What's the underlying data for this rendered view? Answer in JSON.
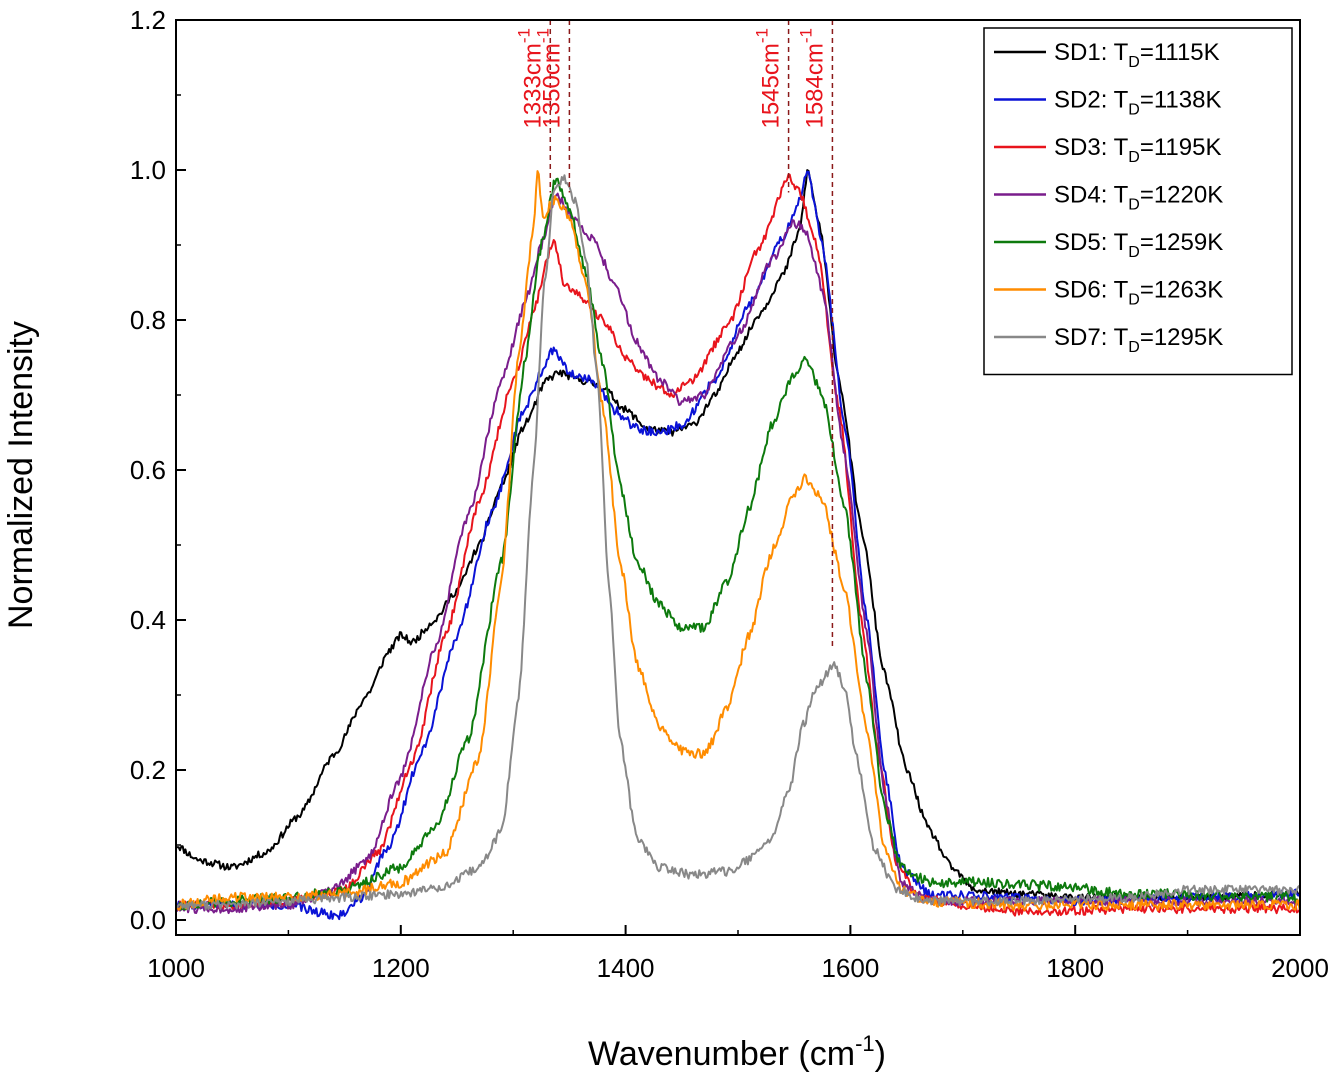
{
  "chart_data": {
    "type": "line",
    "title": "",
    "xlabel": "Wavenumber (cm",
    "xlabel_sup": "-1",
    "xlabel_close": ")",
    "ylabel": "Normalized Intensity",
    "xlim": [
      1000,
      2000
    ],
    "ylim": [
      -0.02,
      1.2
    ],
    "x_ticks": [
      1000,
      1200,
      1400,
      1600,
      1800,
      2000
    ],
    "x_tick_labels": [
      "1000",
      "1200",
      "1400",
      "1600",
      "1800",
      "2000"
    ],
    "x_minor_ticks": [
      1100,
      1300,
      1500,
      1700,
      1900
    ],
    "y_ticks": [
      0.0,
      0.2,
      0.4,
      0.6,
      0.8,
      1.0,
      1.2
    ],
    "y_tick_labels": [
      "0.0",
      "0.2",
      "0.4",
      "0.6",
      "0.8",
      "1.0",
      "1.2"
    ],
    "y_minor_ticks": [
      0.1,
      0.3,
      0.5,
      0.7,
      0.9,
      1.1
    ],
    "grid": false,
    "legend_position": "top-right",
    "annotations": [
      {
        "x": 1333,
        "label": "1333cm",
        "sup": "-1",
        "color": "#e8141c"
      },
      {
        "x": 1350,
        "label": "1350cm",
        "sup": "-1",
        "color": "#e8141c"
      },
      {
        "x": 1545,
        "label": "1545cm",
        "sup": "-1",
        "color": "#e8141c"
      },
      {
        "x": 1584,
        "label": "1584cm",
        "sup": "-1",
        "color": "#e8141c"
      }
    ],
    "annotation_line_color": "#8b1a1a",
    "series": [
      {
        "name": "SD1",
        "legend_prefix": "SD1: T",
        "legend_sub": "D",
        "legend_suffix": "=1115K",
        "color": "#000000",
        "noise": 0.005,
        "seed": 11,
        "points": [
          [
            1000,
            0.1
          ],
          [
            1020,
            0.08
          ],
          [
            1050,
            0.07
          ],
          [
            1080,
            0.09
          ],
          [
            1110,
            0.14
          ],
          [
            1140,
            0.22
          ],
          [
            1170,
            0.3
          ],
          [
            1190,
            0.36
          ],
          [
            1200,
            0.38
          ],
          [
            1210,
            0.37
          ],
          [
            1230,
            0.4
          ],
          [
            1250,
            0.44
          ],
          [
            1270,
            0.5
          ],
          [
            1290,
            0.58
          ],
          [
            1310,
            0.66
          ],
          [
            1330,
            0.72
          ],
          [
            1340,
            0.73
          ],
          [
            1360,
            0.72
          ],
          [
            1380,
            0.71
          ],
          [
            1400,
            0.68
          ],
          [
            1420,
            0.655
          ],
          [
            1440,
            0.65
          ],
          [
            1460,
            0.66
          ],
          [
            1480,
            0.7
          ],
          [
            1500,
            0.76
          ],
          [
            1520,
            0.81
          ],
          [
            1540,
            0.86
          ],
          [
            1555,
            0.92
          ],
          [
            1562,
            1.0
          ],
          [
            1572,
            0.93
          ],
          [
            1590,
            0.72
          ],
          [
            1610,
            0.52
          ],
          [
            1630,
            0.33
          ],
          [
            1650,
            0.2
          ],
          [
            1670,
            0.12
          ],
          [
            1690,
            0.07
          ],
          [
            1710,
            0.04
          ],
          [
            1750,
            0.035
          ],
          [
            1800,
            0.03
          ],
          [
            1900,
            0.03
          ],
          [
            2000,
            0.035
          ]
        ]
      },
      {
        "name": "SD2",
        "legend_prefix": "SD2: T",
        "legend_sub": "D",
        "legend_suffix": "=1138K",
        "color": "#0a12d6",
        "noise": 0.006,
        "seed": 22,
        "points": [
          [
            1000,
            0.02
          ],
          [
            1050,
            0.02
          ],
          [
            1100,
            0.02
          ],
          [
            1130,
            0.01
          ],
          [
            1145,
            0.005
          ],
          [
            1165,
            0.03
          ],
          [
            1190,
            0.1
          ],
          [
            1220,
            0.23
          ],
          [
            1250,
            0.38
          ],
          [
            1280,
            0.54
          ],
          [
            1310,
            0.68
          ],
          [
            1325,
            0.73
          ],
          [
            1335,
            0.76
          ],
          [
            1350,
            0.73
          ],
          [
            1370,
            0.72
          ],
          [
            1390,
            0.68
          ],
          [
            1410,
            0.655
          ],
          [
            1430,
            0.65
          ],
          [
            1450,
            0.66
          ],
          [
            1480,
            0.72
          ],
          [
            1510,
            0.82
          ],
          [
            1540,
            0.91
          ],
          [
            1555,
            0.96
          ],
          [
            1562,
            1.0
          ],
          [
            1575,
            0.9
          ],
          [
            1595,
            0.66
          ],
          [
            1615,
            0.4
          ],
          [
            1630,
            0.2
          ],
          [
            1645,
            0.07
          ],
          [
            1670,
            0.035
          ],
          [
            1800,
            0.025
          ],
          [
            1900,
            0.03
          ],
          [
            2000,
            0.035
          ]
        ]
      },
      {
        "name": "SD3",
        "legend_prefix": "SD3: T",
        "legend_sub": "D",
        "legend_suffix": "=1195K",
        "color": "#e8141c",
        "noise": 0.006,
        "seed": 33,
        "points": [
          [
            1000,
            0.02
          ],
          [
            1050,
            0.02
          ],
          [
            1100,
            0.025
          ],
          [
            1150,
            0.04
          ],
          [
            1180,
            0.09
          ],
          [
            1210,
            0.21
          ],
          [
            1240,
            0.38
          ],
          [
            1270,
            0.56
          ],
          [
            1300,
            0.72
          ],
          [
            1320,
            0.82
          ],
          [
            1330,
            0.88
          ],
          [
            1336,
            0.91
          ],
          [
            1345,
            0.85
          ],
          [
            1360,
            0.83
          ],
          [
            1380,
            0.8
          ],
          [
            1400,
            0.75
          ],
          [
            1420,
            0.72
          ],
          [
            1440,
            0.7
          ],
          [
            1460,
            0.72
          ],
          [
            1490,
            0.79
          ],
          [
            1520,
            0.9
          ],
          [
            1545,
            0.99
          ],
          [
            1555,
            0.97
          ],
          [
            1570,
            0.9
          ],
          [
            1590,
            0.68
          ],
          [
            1610,
            0.4
          ],
          [
            1625,
            0.22
          ],
          [
            1640,
            0.08
          ],
          [
            1660,
            0.03
          ],
          [
            1700,
            0.02
          ],
          [
            1750,
            0.01
          ],
          [
            1850,
            0.015
          ],
          [
            2000,
            0.015
          ]
        ]
      },
      {
        "name": "SD4",
        "legend_prefix": "SD4: T",
        "legend_sub": "D",
        "legend_suffix": "=1220K",
        "color": "#7a1d8c",
        "noise": 0.006,
        "seed": 44,
        "points": [
          [
            1000,
            0.015
          ],
          [
            1050,
            0.015
          ],
          [
            1100,
            0.02
          ],
          [
            1140,
            0.04
          ],
          [
            1170,
            0.08
          ],
          [
            1200,
            0.19
          ],
          [
            1230,
            0.36
          ],
          [
            1260,
            0.54
          ],
          [
            1290,
            0.72
          ],
          [
            1310,
            0.82
          ],
          [
            1325,
            0.9
          ],
          [
            1338,
            0.97
          ],
          [
            1350,
            0.94
          ],
          [
            1370,
            0.91
          ],
          [
            1390,
            0.85
          ],
          [
            1410,
            0.77
          ],
          [
            1430,
            0.72
          ],
          [
            1450,
            0.69
          ],
          [
            1470,
            0.7
          ],
          [
            1500,
            0.78
          ],
          [
            1530,
            0.88
          ],
          [
            1550,
            0.93
          ],
          [
            1560,
            0.92
          ],
          [
            1575,
            0.84
          ],
          [
            1595,
            0.62
          ],
          [
            1615,
            0.38
          ],
          [
            1630,
            0.17
          ],
          [
            1645,
            0.05
          ],
          [
            1670,
            0.025
          ],
          [
            2000,
            0.025
          ]
        ]
      },
      {
        "name": "SD5",
        "legend_prefix": "SD5: T",
        "legend_sub": "D",
        "legend_suffix": "=1259K",
        "color": "#0d7a0d",
        "noise": 0.007,
        "seed": 55,
        "points": [
          [
            1000,
            0.02
          ],
          [
            1050,
            0.025
          ],
          [
            1100,
            0.03
          ],
          [
            1150,
            0.04
          ],
          [
            1200,
            0.07
          ],
          [
            1230,
            0.12
          ],
          [
            1260,
            0.24
          ],
          [
            1290,
            0.48
          ],
          [
            1310,
            0.74
          ],
          [
            1325,
            0.9
          ],
          [
            1338,
            0.99
          ],
          [
            1350,
            0.95
          ],
          [
            1365,
            0.86
          ],
          [
            1380,
            0.74
          ],
          [
            1395,
            0.58
          ],
          [
            1410,
            0.48
          ],
          [
            1430,
            0.42
          ],
          [
            1450,
            0.39
          ],
          [
            1470,
            0.39
          ],
          [
            1490,
            0.45
          ],
          [
            1510,
            0.55
          ],
          [
            1530,
            0.66
          ],
          [
            1550,
            0.73
          ],
          [
            1560,
            0.75
          ],
          [
            1575,
            0.7
          ],
          [
            1595,
            0.55
          ],
          [
            1615,
            0.32
          ],
          [
            1630,
            0.15
          ],
          [
            1645,
            0.07
          ],
          [
            1670,
            0.05
          ],
          [
            1720,
            0.05
          ],
          [
            1780,
            0.045
          ],
          [
            1850,
            0.035
          ],
          [
            2000,
            0.03
          ]
        ]
      },
      {
        "name": "SD6",
        "legend_prefix": "SD6: T",
        "legend_sub": "D",
        "legend_suffix": "=1263K",
        "color": "#ff8c00",
        "noise": 0.007,
        "seed": 66,
        "points": [
          [
            1000,
            0.02
          ],
          [
            1050,
            0.03
          ],
          [
            1100,
            0.03
          ],
          [
            1150,
            0.035
          ],
          [
            1200,
            0.05
          ],
          [
            1240,
            0.09
          ],
          [
            1270,
            0.22
          ],
          [
            1290,
            0.46
          ],
          [
            1305,
            0.76
          ],
          [
            1318,
            0.92
          ],
          [
            1322,
            1.0
          ],
          [
            1326,
            0.94
          ],
          [
            1338,
            0.96
          ],
          [
            1350,
            0.94
          ],
          [
            1365,
            0.85
          ],
          [
            1380,
            0.68
          ],
          [
            1395,
            0.48
          ],
          [
            1410,
            0.34
          ],
          [
            1430,
            0.26
          ],
          [
            1450,
            0.225
          ],
          [
            1470,
            0.22
          ],
          [
            1490,
            0.28
          ],
          [
            1510,
            0.38
          ],
          [
            1530,
            0.49
          ],
          [
            1550,
            0.57
          ],
          [
            1560,
            0.59
          ],
          [
            1575,
            0.56
          ],
          [
            1595,
            0.44
          ],
          [
            1615,
            0.25
          ],
          [
            1630,
            0.1
          ],
          [
            1645,
            0.04
          ],
          [
            1670,
            0.025
          ],
          [
            1750,
            0.02
          ],
          [
            1850,
            0.02
          ],
          [
            2000,
            0.02
          ]
        ]
      },
      {
        "name": "SD7",
        "legend_prefix": "SD7: T",
        "legend_sub": "D",
        "legend_suffix": "=1295K",
        "color": "#888888",
        "noise": 0.006,
        "seed": 77,
        "points": [
          [
            1000,
            0.02
          ],
          [
            1050,
            0.02
          ],
          [
            1100,
            0.025
          ],
          [
            1150,
            0.03
          ],
          [
            1200,
            0.035
          ],
          [
            1240,
            0.045
          ],
          [
            1270,
            0.07
          ],
          [
            1290,
            0.12
          ],
          [
            1305,
            0.3
          ],
          [
            1318,
            0.6
          ],
          [
            1328,
            0.85
          ],
          [
            1336,
            0.97
          ],
          [
            1345,
            0.99
          ],
          [
            1355,
            0.96
          ],
          [
            1365,
            0.88
          ],
          [
            1375,
            0.72
          ],
          [
            1385,
            0.45
          ],
          [
            1395,
            0.24
          ],
          [
            1410,
            0.11
          ],
          [
            1430,
            0.07
          ],
          [
            1460,
            0.06
          ],
          [
            1490,
            0.065
          ],
          [
            1510,
            0.08
          ],
          [
            1530,
            0.11
          ],
          [
            1545,
            0.17
          ],
          [
            1558,
            0.26
          ],
          [
            1570,
            0.31
          ],
          [
            1585,
            0.34
          ],
          [
            1595,
            0.31
          ],
          [
            1605,
            0.22
          ],
          [
            1620,
            0.1
          ],
          [
            1640,
            0.04
          ],
          [
            1670,
            0.025
          ],
          [
            1750,
            0.025
          ],
          [
            1850,
            0.03
          ],
          [
            1900,
            0.04
          ],
          [
            2000,
            0.04
          ]
        ]
      }
    ]
  }
}
